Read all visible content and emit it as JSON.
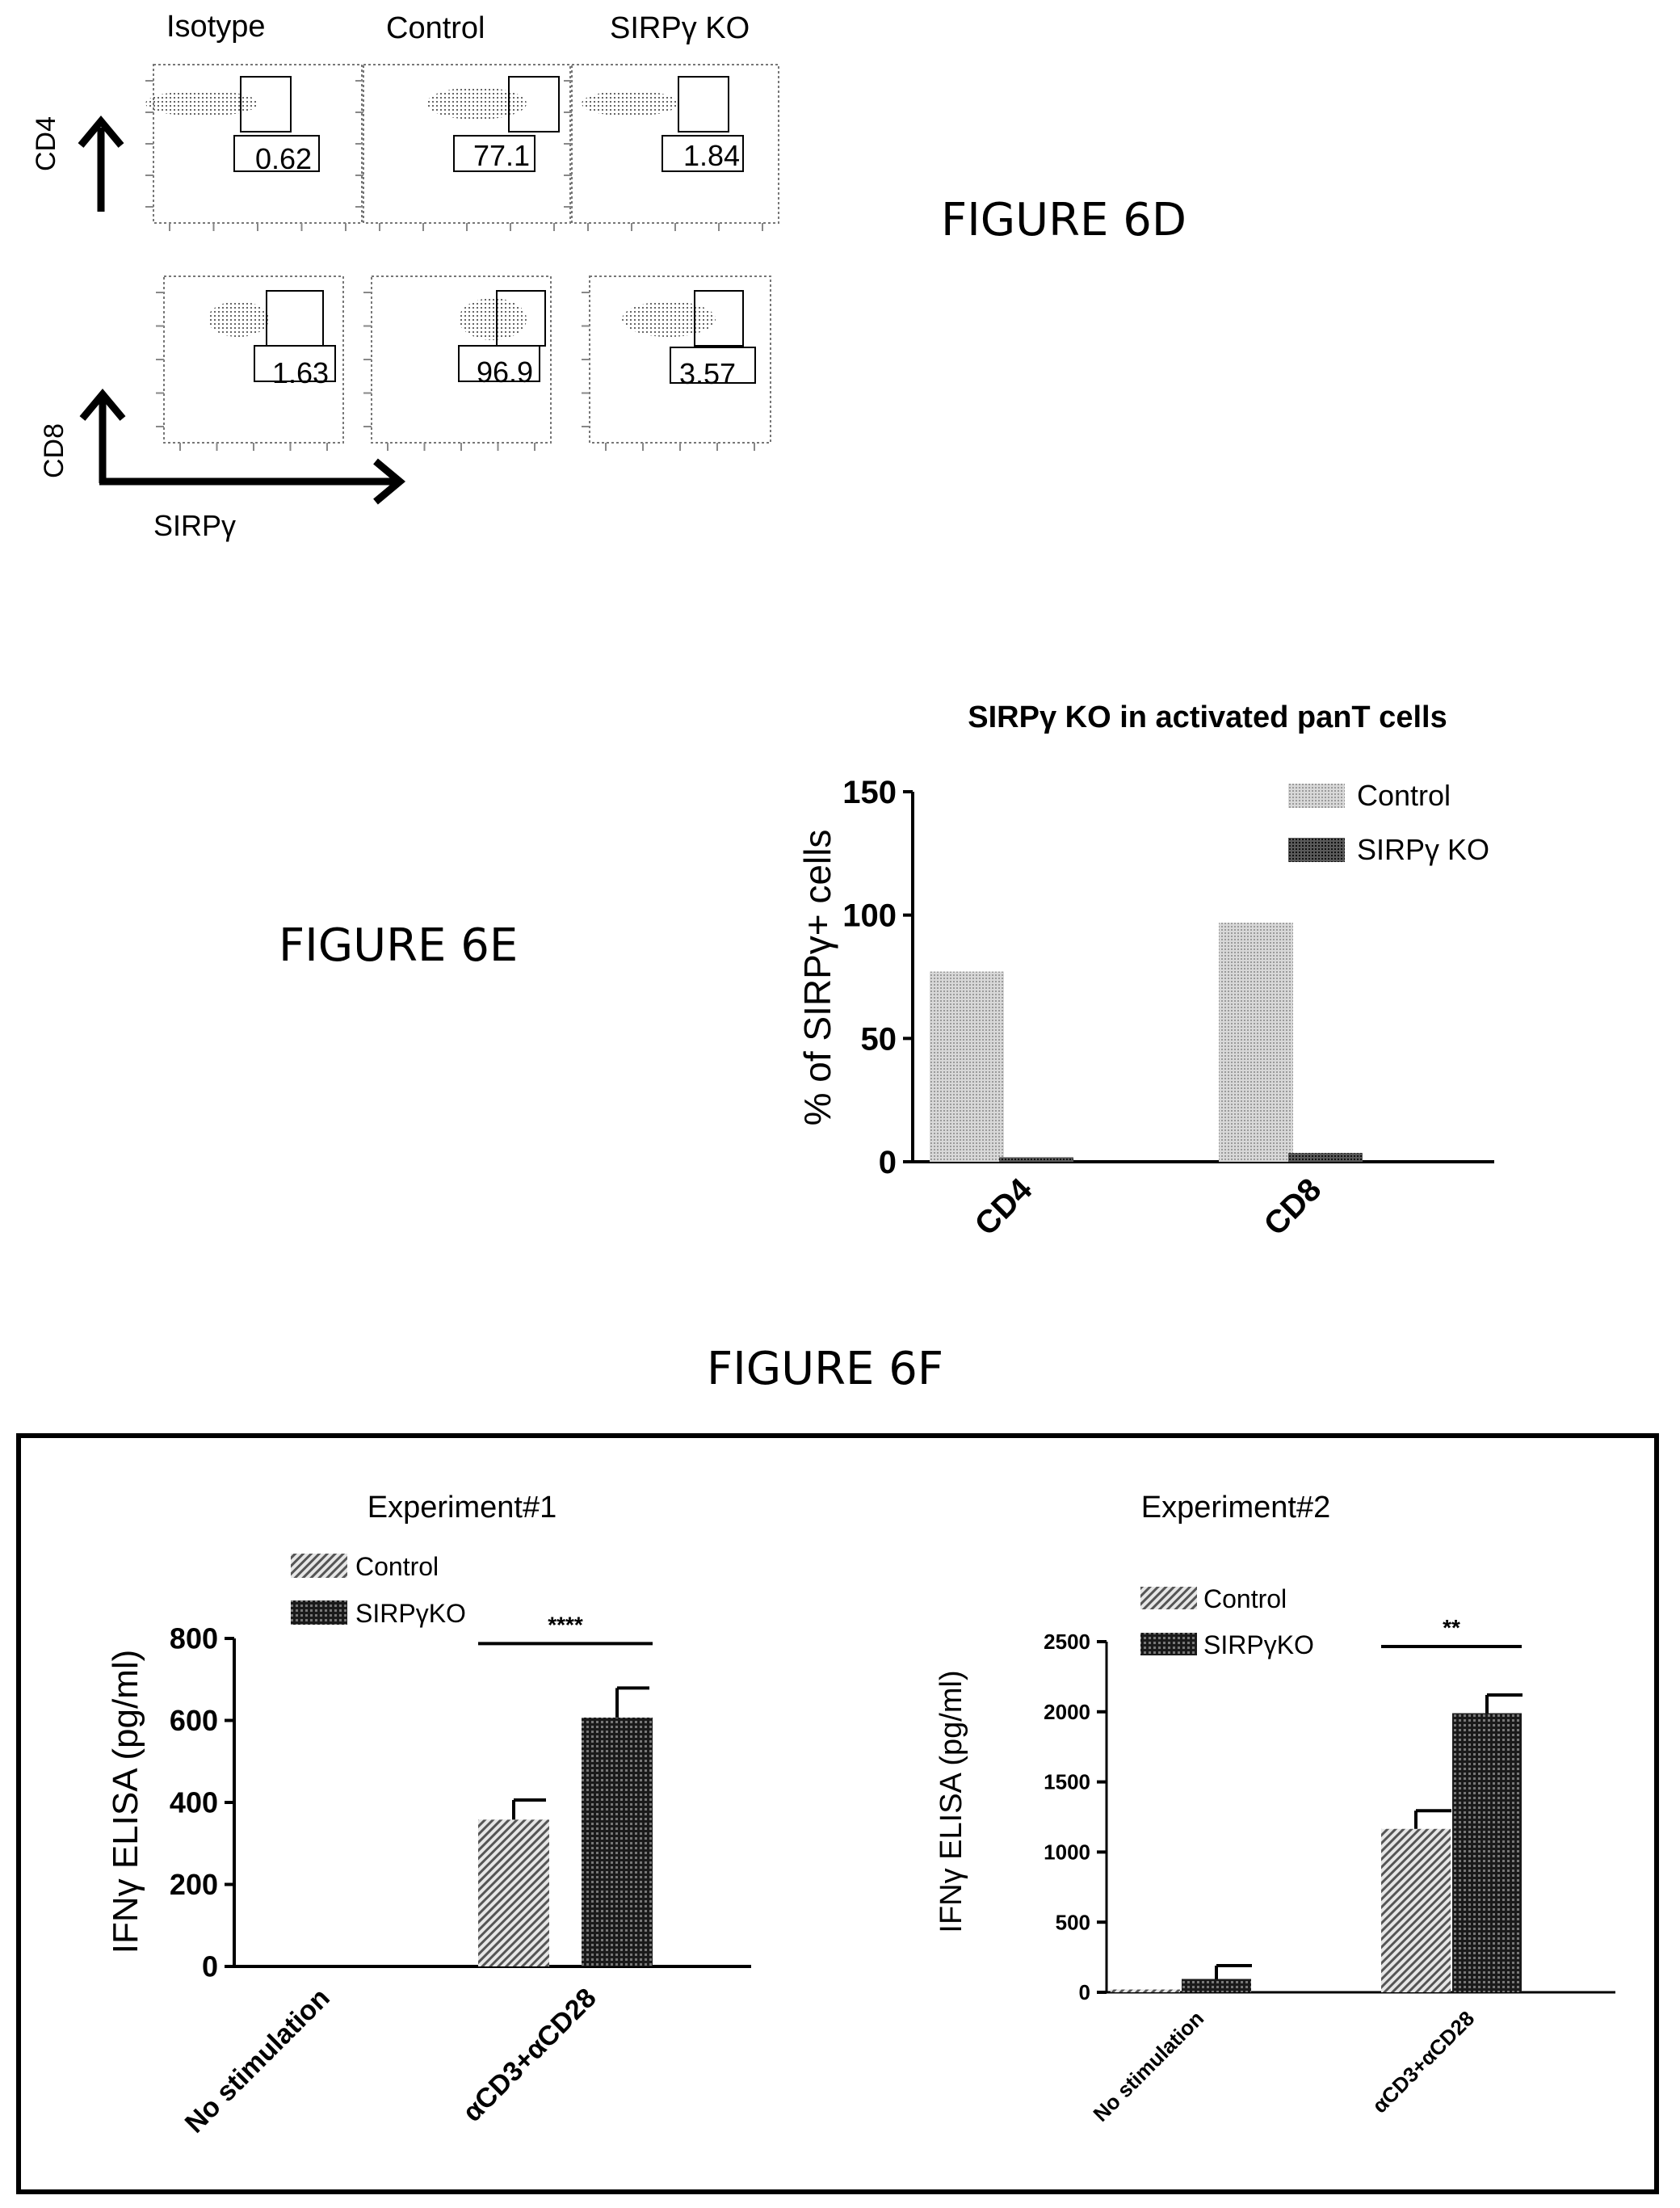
{
  "figures": {
    "d": "FIGURE 6D",
    "e": "FIGURE 6E",
    "f": "FIGURE 6F"
  },
  "flow": {
    "col_labels": [
      "Isotype",
      "Control",
      "SIRPγ KO"
    ],
    "row_labels": [
      "CD4",
      "CD8"
    ],
    "x_axis_label": "SIRPγ",
    "gate_values": [
      [
        "0.62",
        "77.1",
        "1.84"
      ],
      [
        "1.63",
        "96.9",
        "3.57"
      ]
    ]
  },
  "chart_data": [
    {
      "type": "bar",
      "title": "SIRPγ KO in activated panT cells",
      "xlabel": "",
      "ylabel": "% of SIRPγ+ cells",
      "categories": [
        "CD4",
        "CD8"
      ],
      "series": [
        {
          "name": "Control",
          "values": [
            77.1,
            96.9
          ]
        },
        {
          "name": "SIRPγ KO",
          "values": [
            1.84,
            3.57
          ]
        }
      ],
      "ylim": [
        0,
        150
      ],
      "yticks": [
        0,
        50,
        100,
        150
      ],
      "legend": "top-right",
      "grid": false,
      "colors": {
        "Control": "#cfcfcf",
        "SIRPγ KO": "#3a3a3a"
      }
    },
    {
      "type": "bar",
      "title": "Experiment#1",
      "xlabel": "",
      "ylabel": "IFNγ ELISA (pg/ml)",
      "categories": [
        "No stimulation",
        "αCD3+αCD28"
      ],
      "series": [
        {
          "name": "Control",
          "values": [
            0,
            358
          ],
          "errors": [
            0,
            48
          ]
        },
        {
          "name": "SIRPγKO",
          "values": [
            0,
            607
          ],
          "errors": [
            0,
            72
          ]
        }
      ],
      "ylim": [
        0,
        800
      ],
      "yticks": [
        0,
        200,
        400,
        600,
        800
      ],
      "significance": "****",
      "legend": "top-center",
      "grid": false
    },
    {
      "type": "bar",
      "title": "Experiment#2",
      "xlabel": "",
      "ylabel": "IFNγ ELISA (pg/ml)",
      "categories": [
        "No stimulation",
        "αCD3+αCD28"
      ],
      "series": [
        {
          "name": "Control",
          "values": [
            20,
            1165
          ],
          "errors": [
            0,
            130
          ]
        },
        {
          "name": "SIRPγKO",
          "values": [
            95,
            1990
          ],
          "errors": [
            95,
            130
          ]
        }
      ],
      "ylim": [
        0,
        2500
      ],
      "yticks": [
        0,
        500,
        1000,
        1500,
        2000,
        2500
      ],
      "significance": "**",
      "legend": "top-center",
      "grid": false
    }
  ]
}
